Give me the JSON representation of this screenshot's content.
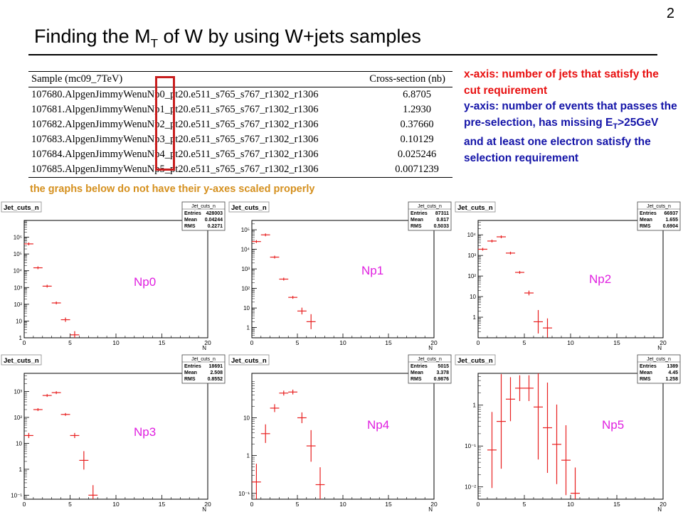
{
  "page_number": "2",
  "title": {
    "prefix": "Finding the M",
    "sub": "T",
    "suffix": " of W by using W+jets samples"
  },
  "table": {
    "headers": [
      "Sample (mc09_7TeV)",
      "Cross-section (nb)"
    ],
    "rows": [
      {
        "sample": "107680.AlpgenJimmyWenuNp0_pt20.e511_s765_s767_r1302_r1306",
        "xsec": "6.8705"
      },
      {
        "sample": "107681.AlpgenJimmyWenuNp1_pt20.e511_s765_s767_r1302_r1306",
        "xsec": "1.2930"
      },
      {
        "sample": "107682.AlpgenJimmyWenuNp2_pt20.e511_s765_s767_r1302_r1306",
        "xsec": "0.37660"
      },
      {
        "sample": "107683.AlpgenJimmyWenuNp3_pt20.e511_s765_s767_r1302_r1306",
        "xsec": "0.10129"
      },
      {
        "sample": "107684.AlpgenJimmyWenuNp4_pt20.e511_s765_s767_r1302_r1306",
        "xsec": "0.025246"
      },
      {
        "sample": "107685.AlpgenJimmyWenuNp5_pt20.e511_s765_s767_r1302_r1306",
        "xsec": "0.0071239"
      }
    ]
  },
  "description": {
    "xaxis": "x-axis: number of jets that satisfy the cut requirement",
    "yaxis_pre": "y-axis: number of events that passes the pre-selection, has missing E",
    "yaxis_sub": "T",
    "yaxis_post": ">25GeV and at least one electron satisfy the selection requirement"
  },
  "note": "the graphs below do not have their y-axes scaled properly",
  "colors": {
    "marker": "#e82020",
    "desc_red": "#e81010",
    "desc_blue": "#1414a8",
    "note": "#d5901e",
    "highlight": "#c81e1e"
  },
  "chart_data": [
    {
      "type": "scatter",
      "label": "Np0",
      "title": "Jet_cuts_n",
      "xlabel": "N",
      "log_y": true,
      "xlim": [
        0,
        20
      ],
      "ylim": [
        1,
        10000000
      ],
      "stats": {
        "Entries": "428003",
        "Mean": "0.04244",
        "RMS": "0.2271"
      },
      "x_ticks": [
        "0",
        "5",
        "10",
        "15",
        "20"
      ],
      "y_ticks": [
        "1",
        "10",
        "10²",
        "10³",
        "10⁴",
        "10⁵",
        "10⁶"
      ],
      "points": [
        {
          "x": 0,
          "y": 400000
        },
        {
          "x": 1,
          "y": 15000
        },
        {
          "x": 2,
          "y": 1200
        },
        {
          "x": 3,
          "y": 120
        },
        {
          "x": 4,
          "y": 12
        },
        {
          "x": 5,
          "y": 1.5
        }
      ]
    },
    {
      "type": "scatter",
      "label": "Np1",
      "title": "Jet_cuts_n",
      "xlabel": "N",
      "log_y": true,
      "xlim": [
        0,
        20
      ],
      "ylim": [
        0.3,
        300000
      ],
      "stats": {
        "Entries": "87311",
        "Mean": "0.817",
        "RMS": "0.5033"
      },
      "x_ticks": [
        "0",
        "5",
        "10",
        "15",
        "20"
      ],
      "y_ticks": [
        "1",
        "10",
        "10²",
        "10³",
        "10⁴",
        "10⁵"
      ],
      "points": [
        {
          "x": 0,
          "y": 25000
        },
        {
          "x": 1,
          "y": 55000
        },
        {
          "x": 2,
          "y": 4000
        },
        {
          "x": 3,
          "y": 300
        },
        {
          "x": 4,
          "y": 35
        },
        {
          "x": 5,
          "y": 7
        },
        {
          "x": 6,
          "y": 2
        }
      ]
    },
    {
      "type": "scatter",
      "label": "Np2",
      "title": "Jet_cuts_n",
      "xlabel": "N",
      "log_y": true,
      "xlim": [
        0,
        20
      ],
      "ylim": [
        0.1,
        50000
      ],
      "stats": {
        "Entries": "66937",
        "Mean": "1.655",
        "RMS": "0.6904"
      },
      "x_ticks": [
        "0",
        "5",
        "10",
        "15",
        "20"
      ],
      "y_ticks": [
        "1",
        "10",
        "10²",
        "10³",
        "10⁴"
      ],
      "points": [
        {
          "x": 0,
          "y": 2000
        },
        {
          "x": 1,
          "y": 5000
        },
        {
          "x": 2,
          "y": 8000
        },
        {
          "x": 3,
          "y": 1300
        },
        {
          "x": 4,
          "y": 150
        },
        {
          "x": 5,
          "y": 15
        },
        {
          "x": 6,
          "y": 0.6
        },
        {
          "x": 7,
          "y": 0.3
        }
      ]
    },
    {
      "type": "scatter",
      "label": "Np3",
      "title": "Jet_cuts_n",
      "xlabel": "N",
      "log_y": true,
      "xlim": [
        0,
        20
      ],
      "ylim": [
        0.07,
        5000
      ],
      "stats": {
        "Entries": "18691",
        "Mean": "2.508",
        "RMS": "0.8552"
      },
      "x_ticks": [
        "0",
        "5",
        "10",
        "15",
        "20"
      ],
      "y_ticks": [
        "10⁻¹",
        "1",
        "10",
        "10²",
        "10³"
      ],
      "points": [
        {
          "x": 0,
          "y": 20
        },
        {
          "x": 1,
          "y": 200
        },
        {
          "x": 2,
          "y": 700
        },
        {
          "x": 3,
          "y": 900
        },
        {
          "x": 4,
          "y": 130
        },
        {
          "x": 5,
          "y": 20
        },
        {
          "x": 6,
          "y": 2.2
        },
        {
          "x": 7,
          "y": 0.1
        }
      ]
    },
    {
      "type": "scatter",
      "label": "Np4",
      "title": "Jet_cuts_n",
      "xlabel": "N",
      "log_y": true,
      "xlim": [
        0,
        20
      ],
      "ylim": [
        0.07,
        150
      ],
      "stats": {
        "Entries": "5015",
        "Mean": "3.378",
        "RMS": "0.9876"
      },
      "x_ticks": [
        "0",
        "5",
        "10",
        "15",
        "20"
      ],
      "y_ticks": [
        "10⁻¹",
        "1",
        "10"
      ],
      "points": [
        {
          "x": 0,
          "y": 0.2
        },
        {
          "x": 1,
          "y": 3.8
        },
        {
          "x": 2,
          "y": 18
        },
        {
          "x": 3,
          "y": 45
        },
        {
          "x": 4,
          "y": 48
        },
        {
          "x": 5,
          "y": 10
        },
        {
          "x": 6,
          "y": 1.8
        },
        {
          "x": 7,
          "y": 0.17
        }
      ]
    },
    {
      "type": "scatter",
      "label": "Np5",
      "title": "Jet_cuts_n",
      "xlabel": "N",
      "log_y": true,
      "xlim": [
        0,
        20
      ],
      "ylim": [
        0.005,
        6
      ],
      "stats": {
        "Entries": "1389",
        "Mean": "4.45",
        "RMS": "1.258"
      },
      "x_ticks": [
        "0",
        "5",
        "10",
        "15",
        "20"
      ],
      "y_ticks": [
        "10⁻²",
        "10⁻¹",
        "1"
      ],
      "points": [
        {
          "x": 1,
          "y": 0.08
        },
        {
          "x": 2,
          "y": 0.4
        },
        {
          "x": 3,
          "y": 1.4
        },
        {
          "x": 4,
          "y": 2.6
        },
        {
          "x": 5,
          "y": 2.6
        },
        {
          "x": 6,
          "y": 0.9
        },
        {
          "x": 7,
          "y": 0.28
        },
        {
          "x": 8,
          "y": 0.11
        },
        {
          "x": 9,
          "y": 0.045
        },
        {
          "x": 10,
          "y": 0.007
        }
      ]
    }
  ]
}
